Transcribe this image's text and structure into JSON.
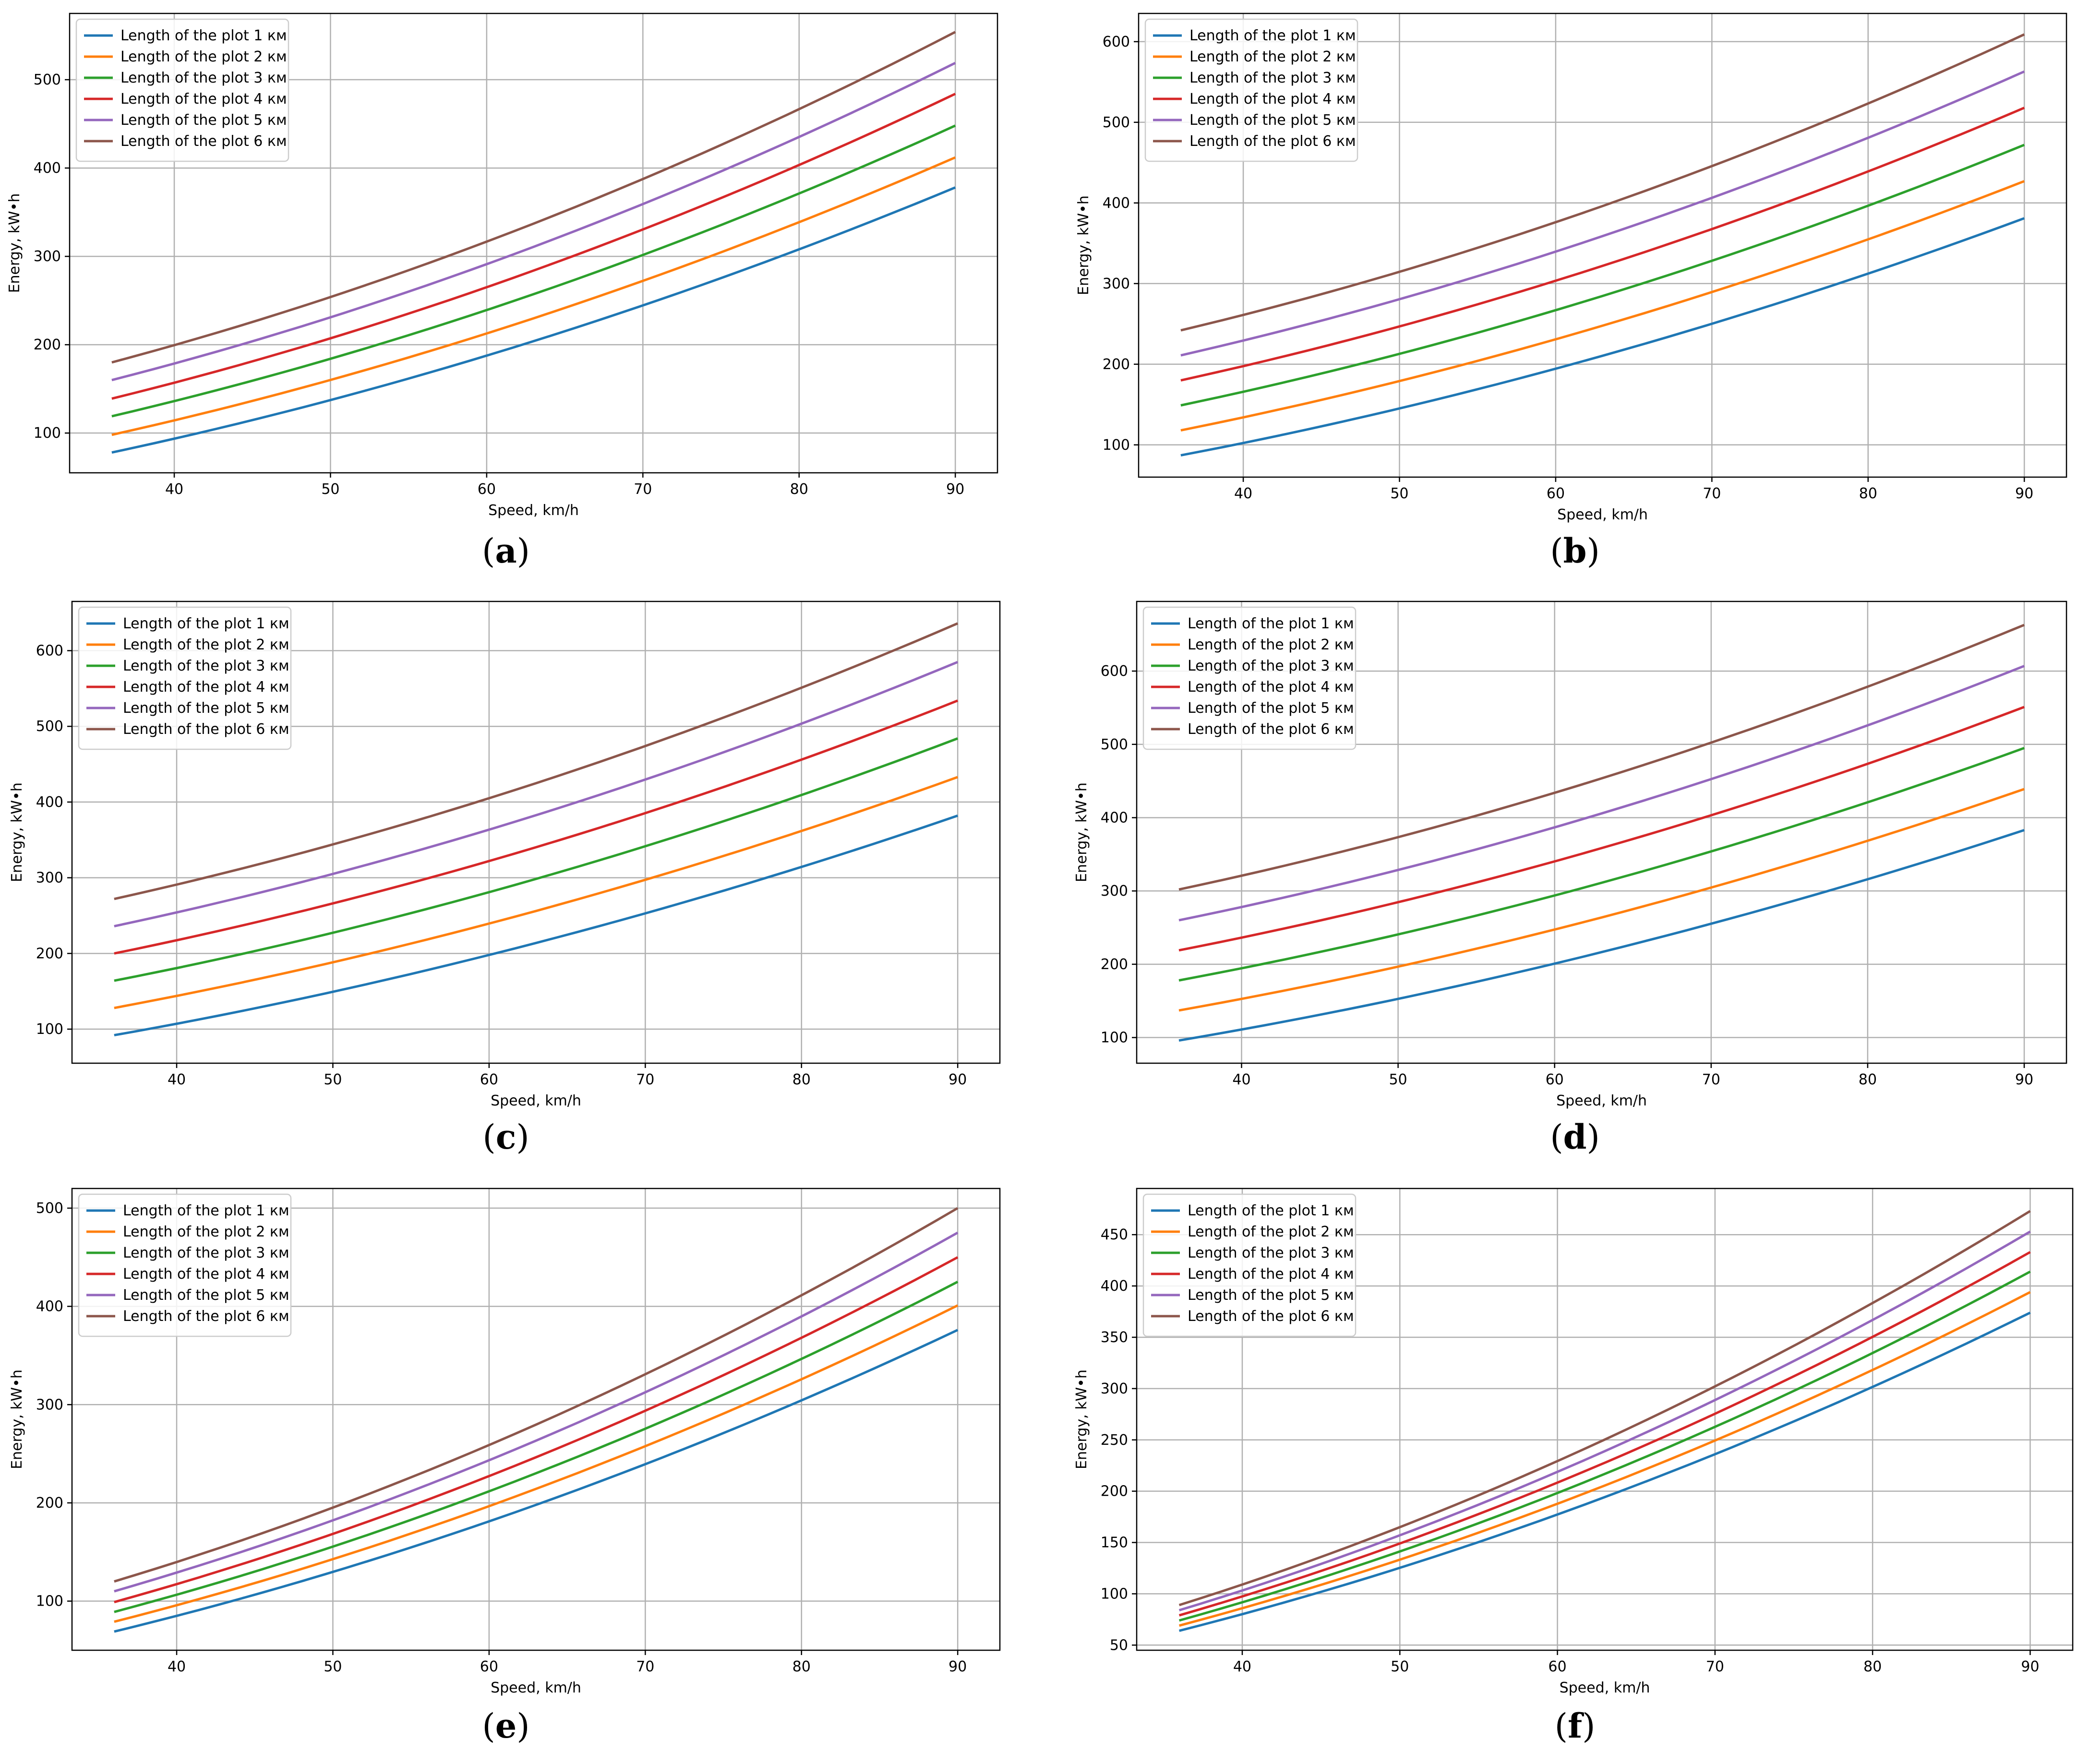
{
  "colors": {
    "series": [
      "#1f77b4",
      "#ff7f0e",
      "#2ca02c",
      "#d62728",
      "#9467bd",
      "#8c564b"
    ],
    "grid": "#b0b0b0",
    "axis": "#000000",
    "legend_border": "#cccccc"
  },
  "chart_data": [
    {
      "type": "line",
      "panel_label": "(a)",
      "caption": {
        "pre": "(",
        "letter": "a",
        "post": ")"
      },
      "xlabel": "Speed, km/h",
      "ylabel": "Energy, kW•h",
      "xlim": [
        33.3,
        92.7
      ],
      "ylim": [
        55,
        575
      ],
      "xticks": [
        40,
        50,
        60,
        70,
        80,
        90
      ],
      "yticks": [
        100,
        200,
        300,
        400,
        500
      ],
      "grid": true,
      "legend_position": "top-left",
      "x": [
        36,
        90
      ],
      "series": [
        {
          "name": "Length of the plot 1 км",
          "values": [
            78,
            378
          ]
        },
        {
          "name": "Length of the plot 2 км",
          "values": [
            98,
            412
          ]
        },
        {
          "name": "Length of the plot 3 км",
          "values": [
            119,
            448
          ]
        },
        {
          "name": "Length of the plot 4 км",
          "values": [
            139,
            484
          ]
        },
        {
          "name": "Length of the plot 5 км",
          "values": [
            160,
            519
          ]
        },
        {
          "name": "Length of the plot 6 км",
          "values": [
            180,
            554
          ]
        }
      ]
    },
    {
      "type": "line",
      "panel_label": "(b)",
      "caption": {
        "pre": "(",
        "letter": "b",
        "post": ")"
      },
      "xlabel": "Speed, km/h",
      "ylabel": "Energy, kW•h",
      "xlim": [
        33.3,
        92.7
      ],
      "ylim": [
        60,
        635
      ],
      "xticks": [
        40,
        50,
        60,
        70,
        80,
        90
      ],
      "yticks": [
        100,
        200,
        300,
        400,
        500,
        600
      ],
      "grid": true,
      "legend_position": "top-left",
      "x": [
        36,
        90
      ],
      "series": [
        {
          "name": "Length of the plot 1 км",
          "values": [
            87,
            381
          ]
        },
        {
          "name": "Length of the plot 2 км",
          "values": [
            118,
            427
          ]
        },
        {
          "name": "Length of the plot 3 км",
          "values": [
            149,
            472
          ]
        },
        {
          "name": "Length of the plot 4 км",
          "values": [
            180,
            518
          ]
        },
        {
          "name": "Length of the plot 5 км",
          "values": [
            211,
            563
          ]
        },
        {
          "name": "Length of the plot 6 км",
          "values": [
            242,
            609
          ]
        }
      ]
    },
    {
      "type": "line",
      "panel_label": "(c)",
      "caption": {
        "pre": "(",
        "letter": "c",
        "post": ")"
      },
      "xlabel": "Speed, km/h",
      "ylabel": "Energy, kW•h",
      "xlim": [
        33.3,
        92.7
      ],
      "ylim": [
        55,
        665
      ],
      "xticks": [
        40,
        50,
        60,
        70,
        80,
        90
      ],
      "yticks": [
        100,
        200,
        300,
        400,
        500,
        600
      ],
      "grid": true,
      "legend_position": "top-left",
      "x": [
        36,
        90
      ],
      "series": [
        {
          "name": "Length of the plot 1 км",
          "values": [
            92,
            382
          ]
        },
        {
          "name": "Length of the plot 2 км",
          "values": [
            128,
            433
          ]
        },
        {
          "name": "Length of the plot 3 км",
          "values": [
            164,
            484
          ]
        },
        {
          "name": "Length of the plot 4 км",
          "values": [
            200,
            534
          ]
        },
        {
          "name": "Length of the plot 5 км",
          "values": [
            236,
            585
          ]
        },
        {
          "name": "Length of the plot 6 км",
          "values": [
            272,
            636
          ]
        }
      ]
    },
    {
      "type": "line",
      "panel_label": "(d)",
      "caption": {
        "pre": "(",
        "letter": "d",
        "post": ")"
      },
      "xlabel": "Speed, km/h",
      "ylabel": "Energy, kW•h",
      "xlim": [
        33.3,
        92.7
      ],
      "ylim": [
        65,
        695
      ],
      "xticks": [
        40,
        50,
        60,
        70,
        80,
        90
      ],
      "yticks": [
        100,
        200,
        300,
        400,
        500,
        600
      ],
      "grid": true,
      "legend_position": "top-left",
      "x": [
        36,
        90
      ],
      "series": [
        {
          "name": "Length of the plot 1 км",
          "values": [
            96,
            383
          ]
        },
        {
          "name": "Length of the plot 2 км",
          "values": [
            137,
            439
          ]
        },
        {
          "name": "Length of the plot 3 км",
          "values": [
            178,
            495
          ]
        },
        {
          "name": "Length of the plot 4 км",
          "values": [
            219,
            551
          ]
        },
        {
          "name": "Length of the plot 5 км",
          "values": [
            260,
            607
          ]
        },
        {
          "name": "Length of the plot 6 км",
          "values": [
            302,
            663
          ]
        }
      ]
    },
    {
      "type": "line",
      "panel_label": "(e)",
      "caption": {
        "pre": "(",
        "letter": "e",
        "post": ")"
      },
      "xlabel": "Speed, km/h",
      "ylabel": "Energy, kW•h",
      "xlim": [
        33.3,
        92.7
      ],
      "ylim": [
        50,
        520
      ],
      "xticks": [
        40,
        50,
        60,
        70,
        80,
        90
      ],
      "yticks": [
        100,
        200,
        300,
        400,
        500
      ],
      "grid": true,
      "legend_position": "top-left",
      "x": [
        36,
        90
      ],
      "series": [
        {
          "name": "Length of the plot 1 км",
          "values": [
            69,
            376
          ]
        },
        {
          "name": "Length of the plot 2 км",
          "values": [
            79,
            401
          ]
        },
        {
          "name": "Length of the plot 3 км",
          "values": [
            89,
            425
          ]
        },
        {
          "name": "Length of the plot 4 км",
          "values": [
            99,
            450
          ]
        },
        {
          "name": "Length of the plot 5 км",
          "values": [
            110,
            475
          ]
        },
        {
          "name": "Length of the plot 6 км",
          "values": [
            120,
            500
          ]
        }
      ]
    },
    {
      "type": "line",
      "panel_label": "(f)",
      "caption": {
        "pre": "(",
        "letter": "f",
        "post": ")"
      },
      "xlabel": "Speed, km/h",
      "ylabel": "Energy, kW•h",
      "xlim": [
        33.3,
        92.7
      ],
      "ylim": [
        45,
        495
      ],
      "xticks": [
        40,
        50,
        60,
        70,
        80,
        90
      ],
      "yticks": [
        50,
        100,
        150,
        200,
        250,
        300,
        350,
        400,
        450
      ],
      "grid": true,
      "legend_position": "top-left",
      "x": [
        36,
        90
      ],
      "series": [
        {
          "name": "Length of the plot 1 км",
          "values": [
            64,
            374
          ]
        },
        {
          "name": "Length of the plot 2 км",
          "values": [
            69,
            394
          ]
        },
        {
          "name": "Length of the plot 3 км",
          "values": [
            74,
            414
          ]
        },
        {
          "name": "Length of the plot 4 км",
          "values": [
            79,
            433
          ]
        },
        {
          "name": "Length of the plot 5 км",
          "values": [
            84,
            453
          ]
        },
        {
          "name": "Length of the plot 6 км",
          "values": [
            89,
            473
          ]
        }
      ]
    }
  ]
}
